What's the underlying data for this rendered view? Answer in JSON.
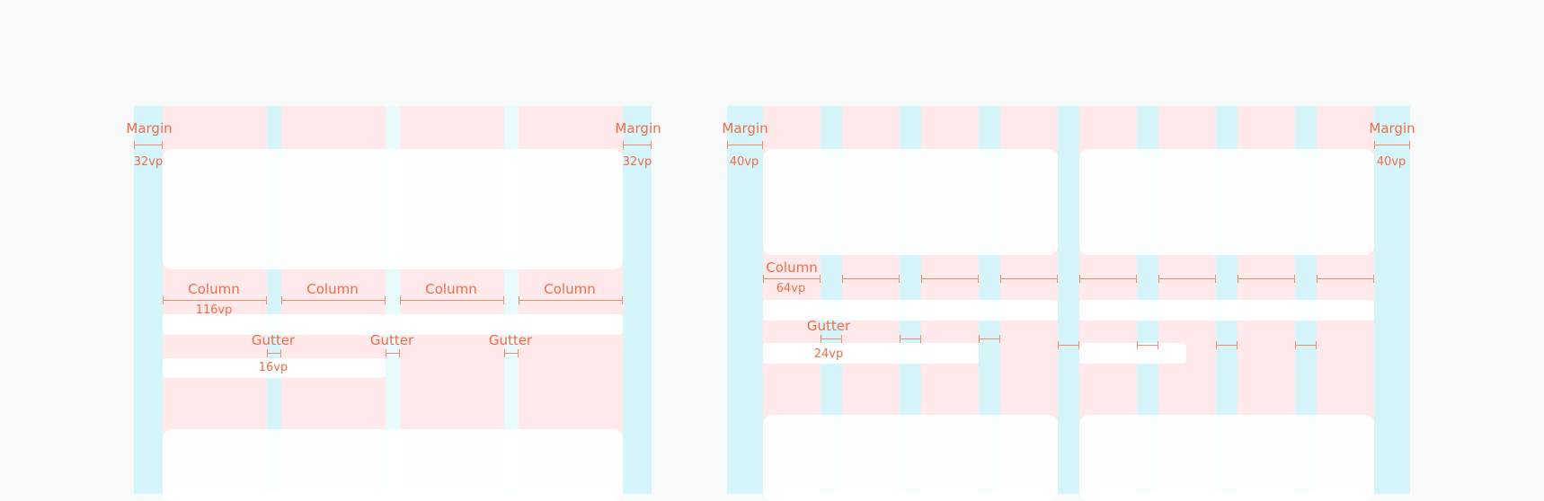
{
  "left_grid": {
    "margin_label": "Margin",
    "margin_value": "32vp",
    "column_label": "Column",
    "column_value": "116vp",
    "gutter_label": "Gutter",
    "gutter_value": "16vp"
  },
  "right_grid": {
    "margin_label": "Margin",
    "margin_value": "40vp",
    "column_label": "Column",
    "column_value": "64vp",
    "gutter_label": "Gutter",
    "gutter_value": "24vp"
  },
  "colors": {
    "background": "#f8f9f9",
    "column": "#ffe9ea",
    "margin": "#d5f5fa",
    "gutter": "#e7fbfd",
    "accent": "#f26c47"
  }
}
